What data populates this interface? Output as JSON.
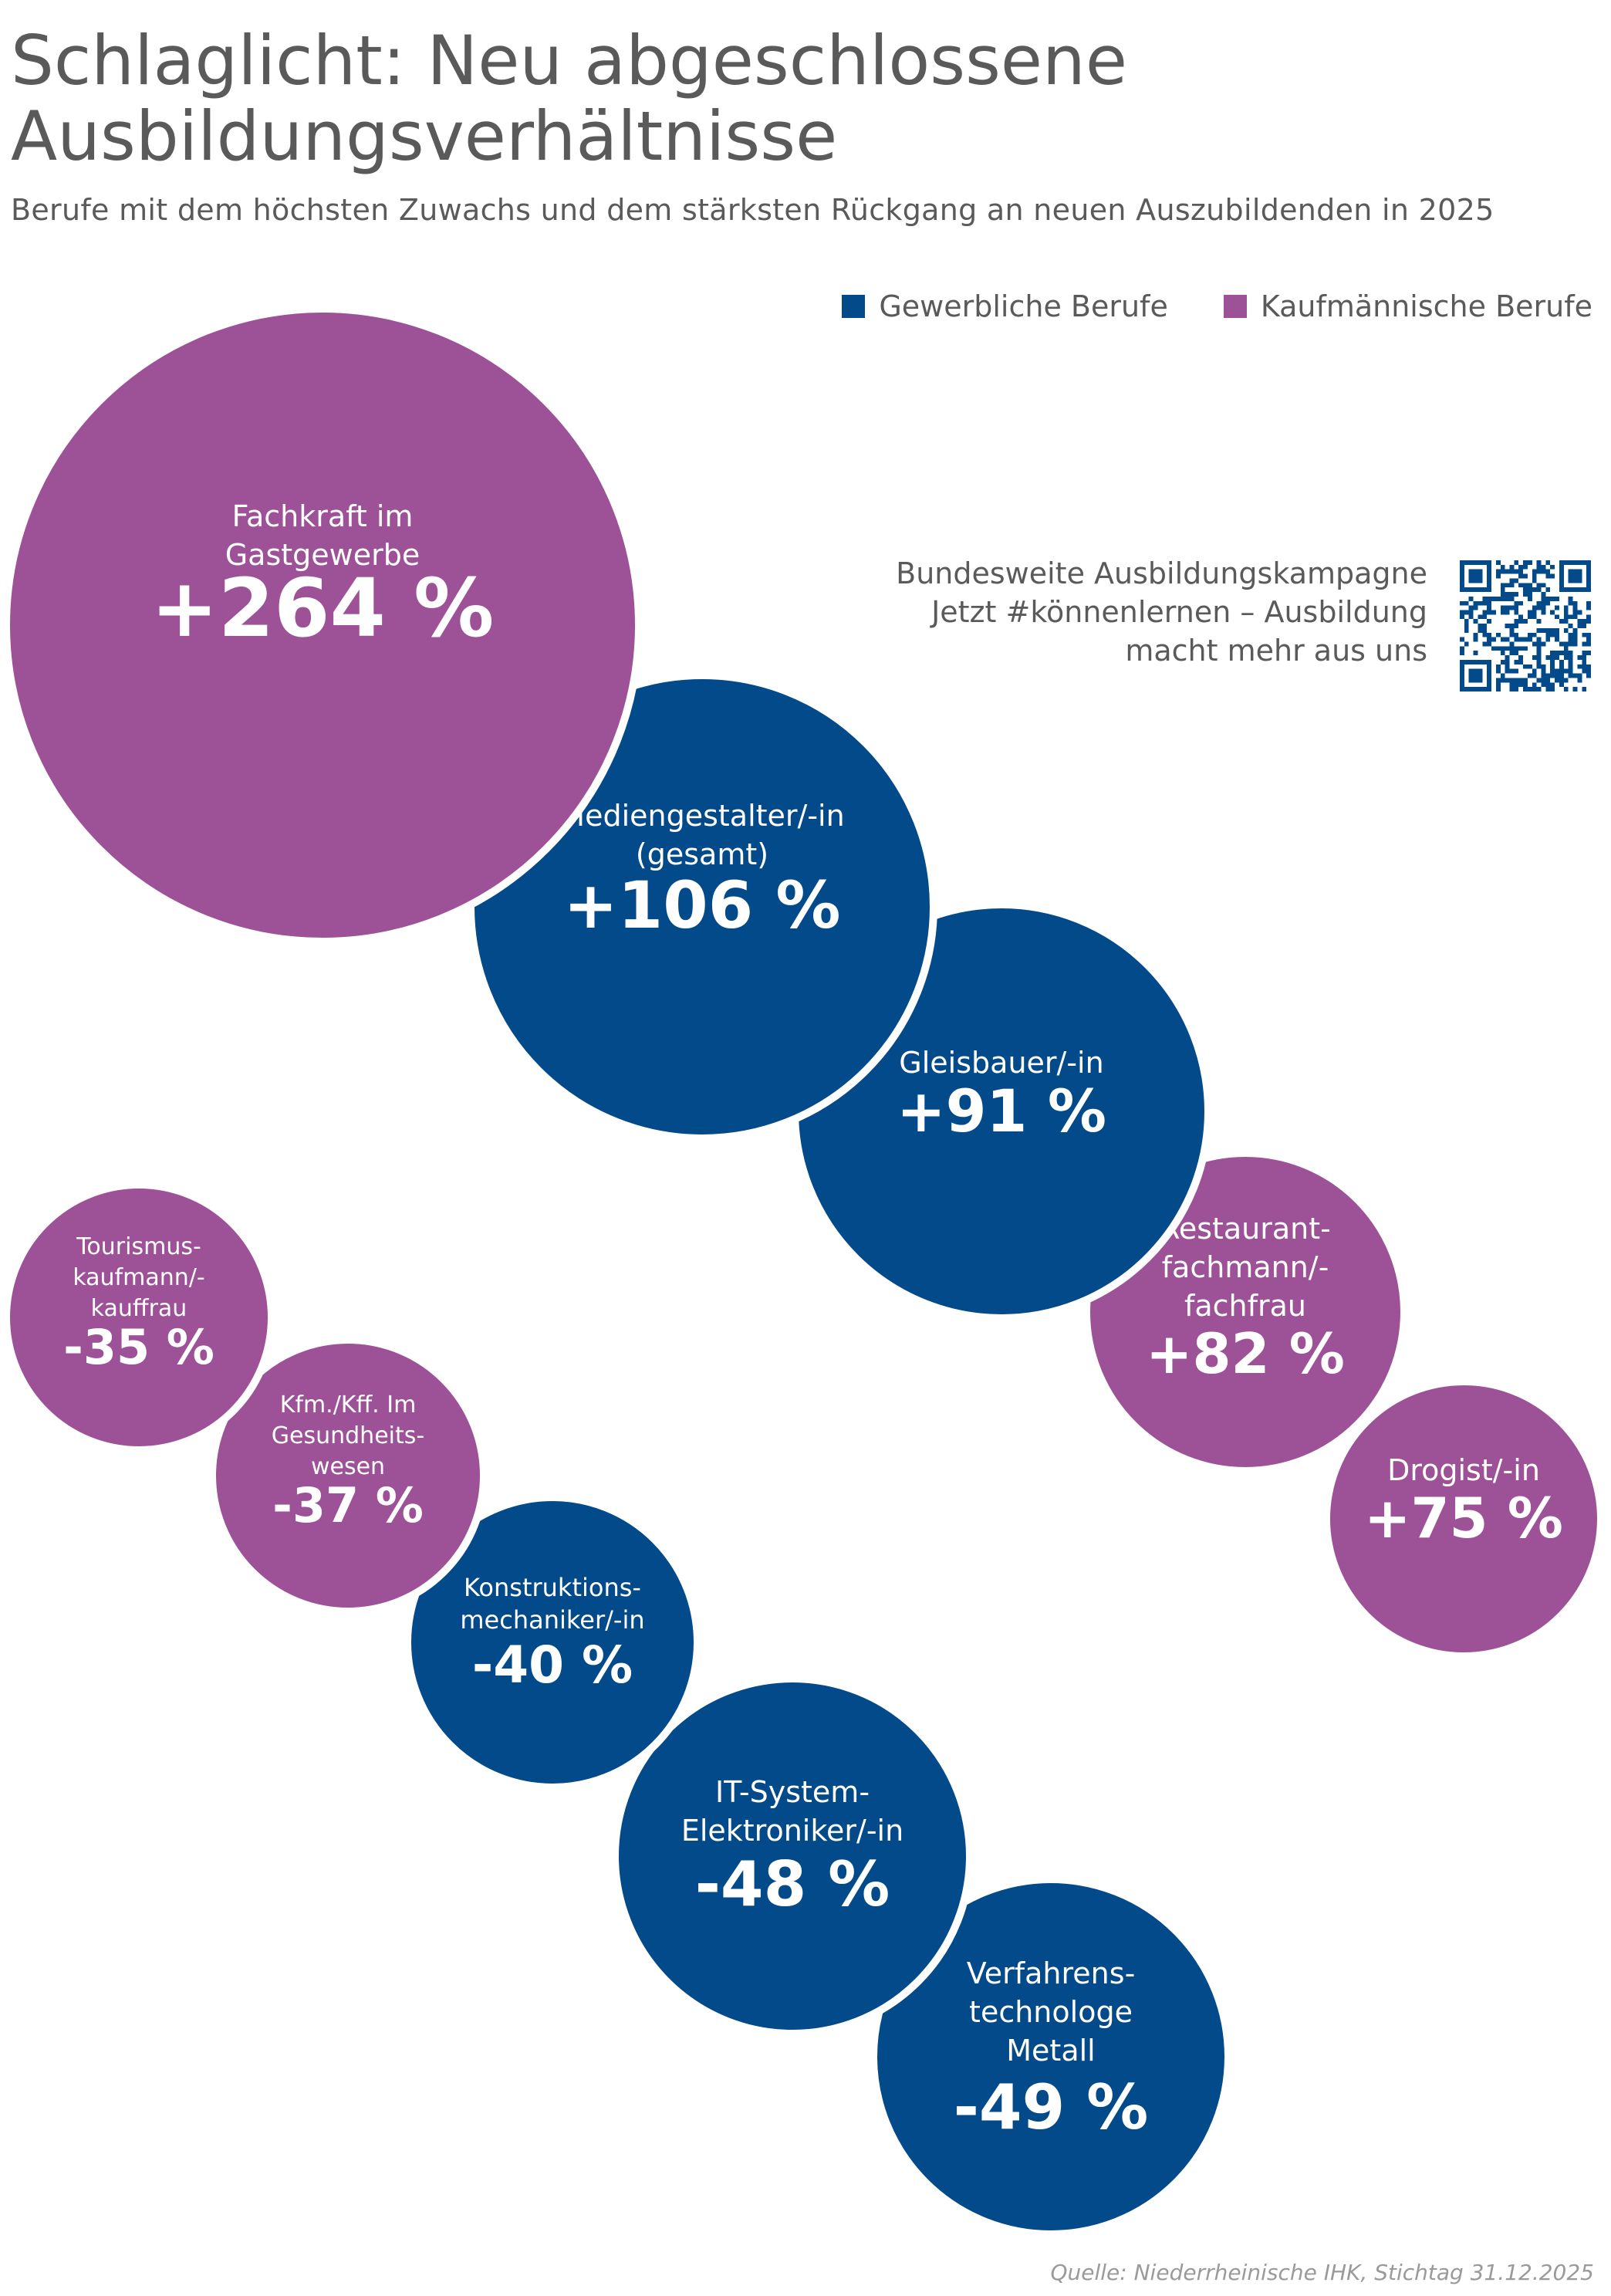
{
  "title_line1": "Schlaglicht: Neu abgeschlossene",
  "title_line2": "Ausbildungsverhältnisse",
  "subtitle": "Berufe mit dem höchsten Zuwachs und dem stärksten Rückgang an neuen Auszubildenden in 2025",
  "legend": [
    {
      "label": "Gewerbliche Berufe",
      "color": "#034a8a"
    },
    {
      "label": "Kaufmännische Berufe",
      "color": "#9d5197"
    }
  ],
  "campaign": {
    "line1": "Bundesweite Ausbildungskampagne",
    "line2": "Jetzt #könnenlernen – Ausbildung",
    "line3": "macht mehr aus uns"
  },
  "source": "Quelle: Niederrheinische IHK, Stichtag 31.12.2025",
  "chart_data": {
    "type": "bubble",
    "unit": "%",
    "items": [
      {
        "name": [
          "Fachkraft im",
          "Gastgewerbe"
        ],
        "value": 264,
        "label": "+264 %",
        "category": "Kaufmännische Berufe"
      },
      {
        "name": [
          "Mediengestalter/-in",
          "(gesamt)"
        ],
        "value": 106,
        "label": "+106 %",
        "category": "Gewerbliche Berufe"
      },
      {
        "name": [
          "Gleisbauer/-in"
        ],
        "value": 91,
        "label": "+91 %",
        "category": "Gewerbliche Berufe"
      },
      {
        "name": [
          "Restaurant-",
          "fachmann/-",
          "fachfrau"
        ],
        "value": 82,
        "label": "+82 %",
        "category": "Kaufmännische Berufe"
      },
      {
        "name": [
          "Drogist/-in"
        ],
        "value": 75,
        "label": "+75 %",
        "category": "Kaufmännische Berufe"
      },
      {
        "name": [
          "Tourismus-",
          "kaufmann/-",
          "kauffrau"
        ],
        "value": -35,
        "label": "-35 %",
        "category": "Kaufmännische Berufe"
      },
      {
        "name": [
          "Kfm./Kff. Im",
          "Gesundheits-",
          "wesen"
        ],
        "value": -37,
        "label": "-37 %",
        "category": "Kaufmännische Berufe"
      },
      {
        "name": [
          "Konstruktions-",
          "mechaniker/-in"
        ],
        "value": -40,
        "label": "-40 %",
        "category": "Gewerbliche Berufe"
      },
      {
        "name": [
          "IT-System-",
          "Elektroniker/-in"
        ],
        "value": -48,
        "label": "-48 %",
        "category": "Gewerbliche Berufe"
      },
      {
        "name": [
          "Verfahrens-",
          "technologe",
          "Metall"
        ],
        "value": -49,
        "label": "-49 %",
        "category": "Gewerbliche Berufe"
      }
    ]
  }
}
